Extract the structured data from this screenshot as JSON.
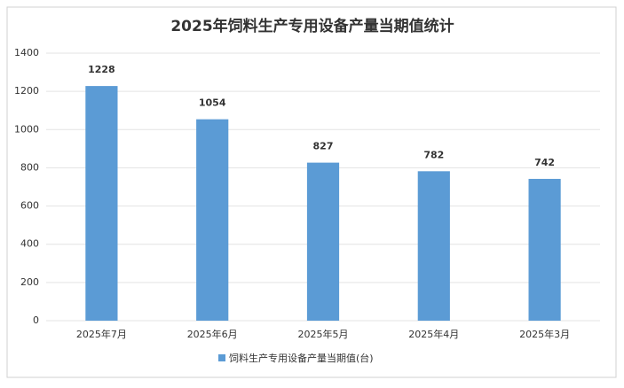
{
  "chart_data": {
    "type": "bar",
    "title": "2025年饲料生产专用设备产量当期值统计",
    "categories": [
      "2025年7月",
      "2025年6月",
      "2025年5月",
      "2025年4月",
      "2025年3月"
    ],
    "series": [
      {
        "name": "饲料生产专用设备产量当期值(台)",
        "color": "#5b9bd5",
        "values": [
          1228,
          1054,
          827,
          782,
          742
        ]
      }
    ],
    "ylim": [
      0,
      1400
    ],
    "yticks": [
      0,
      200,
      400,
      600,
      800,
      1000,
      1200,
      1400
    ],
    "grid": true,
    "legend": "bottom"
  }
}
